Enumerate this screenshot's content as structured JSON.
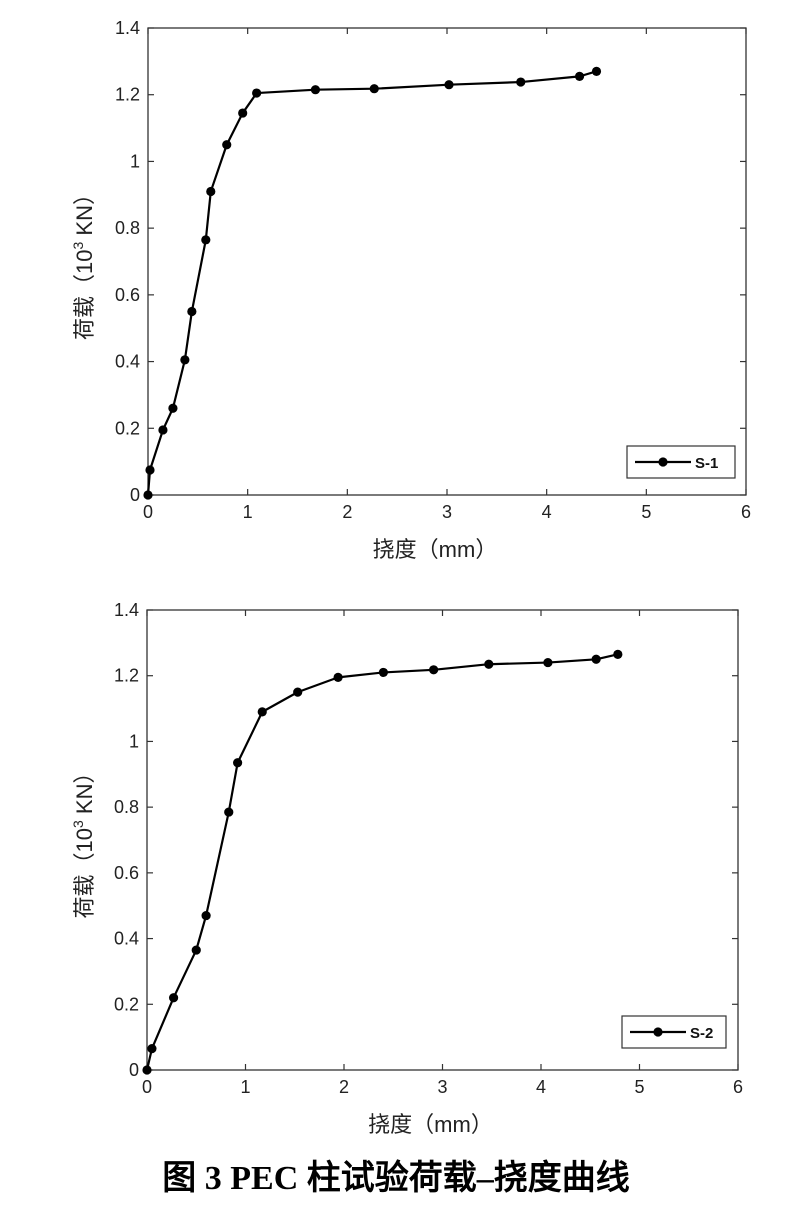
{
  "caption": "图 3  PEC 柱试验荷载–挠度曲线",
  "chart_data": [
    {
      "type": "line",
      "title": "",
      "xlabel": "挠度（mm）",
      "ylabel_main": "荷载（10",
      "ylabel_sup": "3",
      "ylabel_tail": " KN）",
      "xlim": [
        0,
        6
      ],
      "ylim": [
        0,
        1.4
      ],
      "xticks": [
        "0",
        "1",
        "2",
        "3",
        "4",
        "5",
        "6"
      ],
      "yticks": [
        "0",
        "0.2",
        "0.4",
        "0.6",
        "0.8",
        "1",
        "1.2",
        "1.4"
      ],
      "legend_position": "bottom-right",
      "grid": false,
      "series": [
        {
          "name": "S-1",
          "color": "#000000",
          "x": [
            0,
            0.02,
            0.15,
            0.25,
            0.37,
            0.44,
            0.58,
            0.63,
            0.79,
            0.95,
            1.09,
            1.68,
            2.27,
            3.02,
            3.74,
            4.33,
            4.5
          ],
          "y": [
            0,
            0.075,
            0.195,
            0.26,
            0.405,
            0.55,
            0.765,
            0.91,
            1.05,
            1.145,
            1.205,
            1.215,
            1.218,
            1.23,
            1.238,
            1.255,
            1.27
          ]
        }
      ]
    },
    {
      "type": "line",
      "title": "",
      "xlabel": "挠度（mm）",
      "ylabel_main": "荷载（10",
      "ylabel_sup": "3",
      "ylabel_tail": " KN）",
      "xlim": [
        0,
        6
      ],
      "ylim": [
        0,
        1.4
      ],
      "xticks": [
        "0",
        "1",
        "2",
        "3",
        "4",
        "5",
        "6"
      ],
      "yticks": [
        "0",
        "0.2",
        "0.4",
        "0.6",
        "0.8",
        "1",
        "1.2",
        "1.4"
      ],
      "legend_position": "bottom-right",
      "grid": false,
      "series": [
        {
          "name": "S-2",
          "color": "#000000",
          "x": [
            0,
            0.05,
            0.27,
            0.5,
            0.6,
            0.83,
            0.92,
            1.17,
            1.53,
            1.94,
            2.4,
            2.91,
            3.47,
            4.07,
            4.56,
            4.78
          ],
          "y": [
            0,
            0.065,
            0.22,
            0.365,
            0.47,
            0.785,
            0.935,
            1.09,
            1.15,
            1.195,
            1.21,
            1.218,
            1.235,
            1.24,
            1.25,
            1.265
          ]
        }
      ]
    }
  ]
}
